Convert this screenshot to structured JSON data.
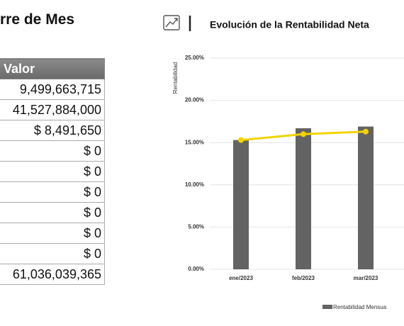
{
  "table": {
    "title": "rre de Mes",
    "header": "Valor",
    "rows": [
      "9,499,663,715",
      "41,527,884,000",
      "$ 8,491,650",
      "$ 0",
      "$ 0",
      "$ 0",
      "$ 0",
      "$ 0",
      "$ 0",
      "61,036,039,365"
    ]
  },
  "chart_data": {
    "type": "bar",
    "title": "Evolución de la Rentabilidad Neta",
    "y_label": "Rentabilidad",
    "categories": [
      "ene/2023",
      "feb/2023",
      "mar/2023"
    ],
    "series": [
      {
        "name": "Rentabilidad Mensua",
        "type": "bar",
        "color": "#636363",
        "values": [
          15.3,
          16.7,
          16.9
        ]
      },
      {
        "type": "line",
        "color": "#f2d400",
        "values": [
          15.3,
          16.0,
          16.3
        ]
      }
    ],
    "ylim": [
      0,
      25
    ],
    "yticks": [
      {
        "value": 0,
        "label": "0.00%"
      },
      {
        "value": 5,
        "label": "5.00%"
      },
      {
        "value": 10,
        "label": "10.00%"
      },
      {
        "value": 15,
        "label": "15.00%"
      },
      {
        "value": 20,
        "label": "20.00%"
      },
      {
        "value": 25,
        "label": "25.00%"
      }
    ],
    "grid": true
  }
}
